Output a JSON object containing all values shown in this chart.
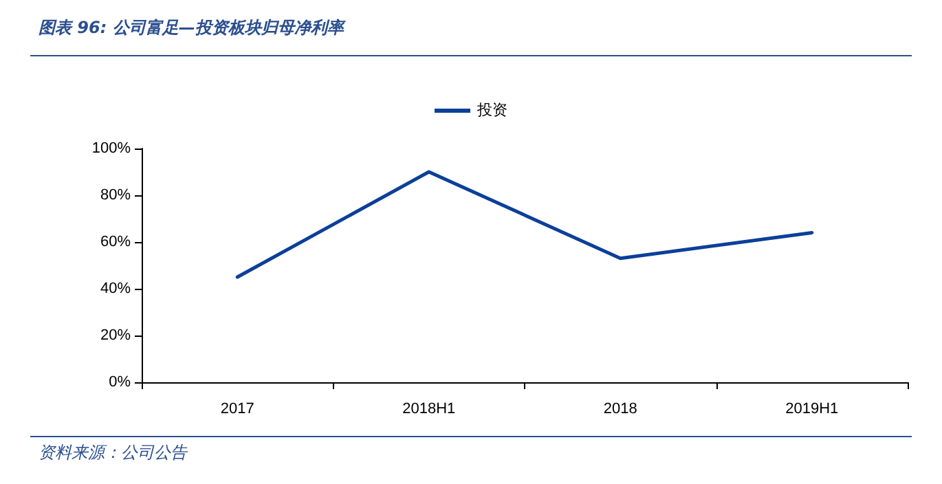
{
  "chart_data": {
    "type": "line",
    "title": "图表 96: 公司富足—投资板块归母净利率",
    "annotations": [
      "资料来源：公司公告"
    ],
    "categories": [
      "2017",
      "2018H1",
      "2018",
      "2019H1"
    ],
    "series": [
      {
        "name": "投资",
        "color": "#0b3f99",
        "values": [
          45,
          90,
          53,
          64
        ]
      }
    ],
    "ylim": [
      0,
      100
    ],
    "yticks": [
      {
        "value": 0,
        "label": "0%"
      },
      {
        "value": 20,
        "label": "20%"
      },
      {
        "value": 40,
        "label": "40%"
      },
      {
        "value": 60,
        "label": "60%"
      },
      {
        "value": 80,
        "label": "80%"
      },
      {
        "value": 100,
        "label": "100%"
      }
    ],
    "grid": false,
    "legend": "top",
    "marker": "none",
    "line_style": "solid"
  }
}
